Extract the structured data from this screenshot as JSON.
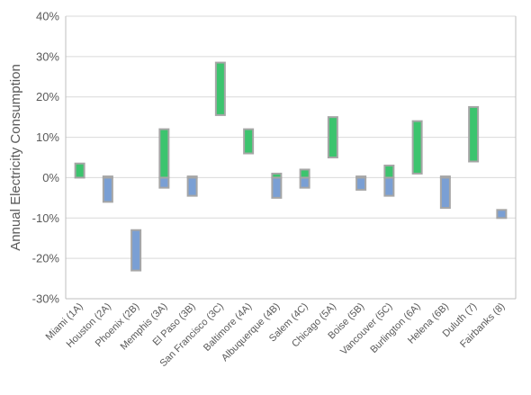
{
  "chart_data": {
    "type": "bar",
    "subtype": "floating-range",
    "title": "",
    "xlabel": "",
    "ylabel": "Annual Electricity Consumption",
    "ylim": [
      -30,
      40
    ],
    "yticks": [
      -30,
      -20,
      -10,
      0,
      10,
      20,
      30,
      40
    ],
    "ytick_labels": [
      "-30%",
      "-20%",
      "-10%",
      "0%",
      "10%",
      "20%",
      "30%",
      "40%"
    ],
    "grid": true,
    "legend": "none",
    "colors": {
      "increase": "#3cc46e",
      "decrease": "#7a9fd4",
      "bar_border": "#a6a6a6",
      "grid": "#d9d9d9",
      "axis": "#bfbfbf",
      "text": "#595959"
    },
    "categories": [
      "Miami (1A)",
      "Houston (2A)",
      "Phoenix (2B)",
      "Memphis (3A)",
      "El Paso (3B)",
      "San Francisco (3C)",
      "Baltimore (4A)",
      "Albuquerque (4B)",
      "Salem (4C)",
      "Chicago (5A)",
      "Boise (5B)",
      "Vancouver (5C)",
      "Burlington (6A)",
      "Helena (6B)",
      "Duluth (7)",
      "Fairbanks (8)"
    ],
    "ranges": [
      {
        "green": [
          0,
          3.5
        ],
        "blue": null
      },
      {
        "green": [
          0,
          0.3
        ],
        "blue": [
          -6,
          0
        ]
      },
      {
        "green": null,
        "blue": [
          -23,
          -13
        ]
      },
      {
        "green": [
          0,
          12
        ],
        "blue": [
          -2.5,
          0
        ]
      },
      {
        "green": [
          0,
          0.3
        ],
        "blue": [
          -4.5,
          0
        ]
      },
      {
        "green": [
          15.5,
          28.5
        ],
        "blue": null
      },
      {
        "green": [
          6,
          12
        ],
        "blue": null
      },
      {
        "green": [
          0,
          1
        ],
        "blue": [
          -5,
          0
        ]
      },
      {
        "green": [
          0,
          2
        ],
        "blue": [
          -2.5,
          0
        ]
      },
      {
        "green": [
          5,
          15
        ],
        "blue": null
      },
      {
        "green": [
          0,
          0.3
        ],
        "blue": [
          -3,
          0
        ]
      },
      {
        "green": [
          0,
          3
        ],
        "blue": [
          -4.5,
          0
        ]
      },
      {
        "green": [
          1,
          14
        ],
        "blue": null
      },
      {
        "green": [
          0,
          0.3
        ],
        "blue": [
          -7.5,
          0
        ]
      },
      {
        "green": [
          4,
          17.5
        ],
        "blue": null
      },
      {
        "green": null,
        "blue": [
          -10,
          -8
        ]
      }
    ]
  }
}
